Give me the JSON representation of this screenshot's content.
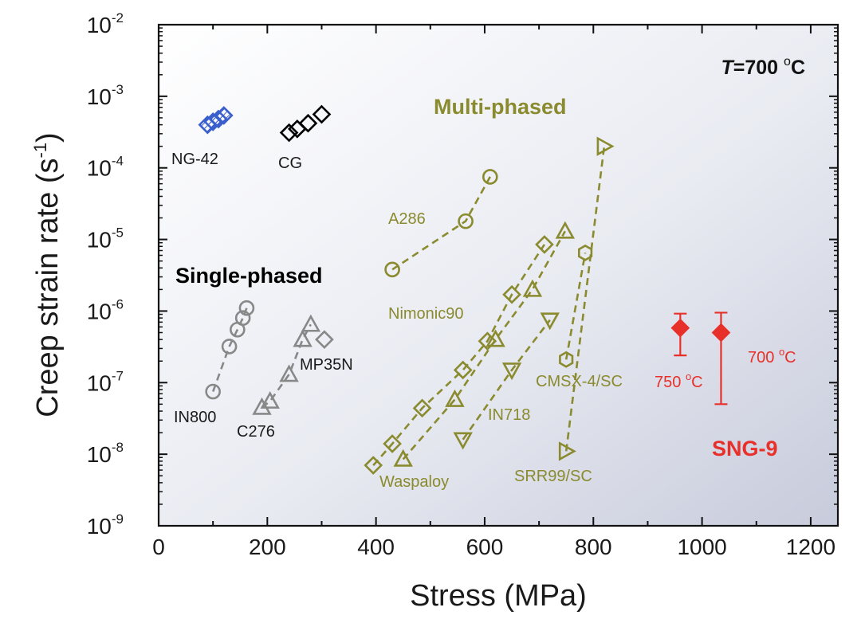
{
  "chart_data": {
    "type": "scatter",
    "xlabel": "Stress (MPa)",
    "ylabel": "Creep strain rate",
    "ylabel_unit_base": "s",
    "ylabel_unit_exp": "-1",
    "x_scale": "linear",
    "y_scale": "log",
    "xlim": [
      0,
      1250
    ],
    "ylim": [
      1e-09,
      0.01
    ],
    "x_ticks": [
      "0",
      "200",
      "400",
      "600",
      "800",
      "1000",
      "1200"
    ],
    "y_ticks": [
      {
        "base": "10",
        "exp": "-9",
        "value": 1e-09
      },
      {
        "base": "10",
        "exp": "-8",
        "value": 1e-08
      },
      {
        "base": "10",
        "exp": "-7",
        "value": 1e-07
      },
      {
        "base": "10",
        "exp": "-6",
        "value": 1e-06
      },
      {
        "base": "10",
        "exp": "-5",
        "value": 1e-05
      },
      {
        "base": "10",
        "exp": "-4",
        "value": 0.0001
      },
      {
        "base": "10",
        "exp": "-3",
        "value": 0.001
      },
      {
        "base": "10",
        "exp": "-2",
        "value": 0.01
      }
    ],
    "temperature_note": {
      "italic": "T",
      "text": "=700 ",
      "degree": "o",
      "unit": "C"
    },
    "group_labels": [
      {
        "text": "Multi-phased",
        "color": "#8a8a2e"
      },
      {
        "text": "Single-phased",
        "color": "#000000"
      },
      {
        "text": "SNG-9",
        "color": "#e8302a"
      }
    ],
    "series": [
      {
        "name": "NG-42",
        "group": "nanograined",
        "marker": "diamond",
        "color": "#3a5fcd",
        "hatched": true,
        "line": false,
        "points": [
          [
            90,
            0.0004
          ],
          [
            100,
            0.00044
          ],
          [
            110,
            0.00048
          ],
          [
            120,
            0.00054
          ]
        ]
      },
      {
        "name": "CG",
        "group": "coarse-grained",
        "marker": "diamond",
        "color": "#000000",
        "line": false,
        "points": [
          [
            240,
            0.00031
          ],
          [
            255,
            0.00035
          ],
          [
            275,
            0.00042
          ],
          [
            300,
            0.00056
          ]
        ]
      },
      {
        "name": "IN800",
        "group": "single-phased",
        "marker": "circle",
        "color": "#888888",
        "line": true,
        "points": [
          [
            100,
            7.5e-08
          ],
          [
            130,
            3.2e-07
          ],
          [
            145,
            5.5e-07
          ],
          [
            155,
            8e-07
          ],
          [
            162,
            1.1e-06
          ]
        ]
      },
      {
        "name": "C276",
        "group": "single-phased",
        "marker": "triangle-up",
        "color": "#888888",
        "line": true,
        "points": [
          [
            190,
            4.5e-08
          ],
          [
            205,
            5.5e-08
          ],
          [
            240,
            1.3e-07
          ],
          [
            265,
            4e-07
          ],
          [
            280,
            6.5e-07
          ]
        ]
      },
      {
        "name": "MP35N",
        "group": "single-phased",
        "marker": "diamond",
        "color": "#888888",
        "line": false,
        "points": [
          [
            305,
            4e-07
          ]
        ]
      },
      {
        "name": "A286",
        "group": "multi-phased",
        "marker": "circle",
        "color": "#8a8a2e",
        "line": true,
        "points": [
          [
            430,
            3.8e-06
          ],
          [
            565,
            1.8e-05
          ],
          [
            610,
            7.5e-05
          ]
        ]
      },
      {
        "name": "Nimonic90",
        "group": "multi-phased",
        "marker": "diamond",
        "color": "#8a8a2e",
        "line": true,
        "points": [
          [
            395,
            7e-09
          ],
          [
            430,
            1.4e-08
          ],
          [
            485,
            4.4e-08
          ],
          [
            560,
            1.5e-07
          ],
          [
            605,
            3.8e-07
          ],
          [
            650,
            1.7e-06
          ],
          [
            710,
            8.5e-06
          ]
        ]
      },
      {
        "name": "Waspaloy",
        "group": "multi-phased",
        "marker": "triangle-up",
        "color": "#8a8a2e",
        "line": true,
        "points": [
          [
            450,
            8.5e-09
          ],
          [
            545,
            5.8e-08
          ],
          [
            620,
            4e-07
          ],
          [
            688,
            2e-06
          ],
          [
            748,
            1.3e-05
          ]
        ]
      },
      {
        "name": "IN718",
        "group": "multi-phased",
        "marker": "triangle-down",
        "color": "#8a8a2e",
        "line": true,
        "points": [
          [
            560,
            1.6e-08
          ],
          [
            650,
            1.5e-07
          ],
          [
            720,
            7.5e-07
          ]
        ]
      },
      {
        "name": "CMSX-4/SC",
        "group": "multi-phased",
        "marker": "hexagon",
        "color": "#8a8a2e",
        "line": true,
        "points": [
          [
            750,
            2.1e-07
          ],
          [
            785,
            6.5e-06
          ]
        ]
      },
      {
        "name": "SRR99/SC",
        "group": "multi-phased",
        "marker": "triangle-right",
        "color": "#8a8a2e",
        "line": true,
        "points": [
          [
            750,
            1.1e-08
          ],
          [
            820,
            0.0002
          ]
        ]
      },
      {
        "name": "SNG-9",
        "group": "this-work",
        "marker": "diamond-filled",
        "color": "#e8302a",
        "line": false,
        "points": [
          {
            "x": 960,
            "y": 5.8e-07,
            "ymin": 2.4e-07,
            "ymax": 9.2e-07,
            "label": {
              "text": "750 ",
              "degree": "o",
              "unit": "C"
            }
          },
          {
            "x": 1035,
            "y": 5e-07,
            "ymin": 5e-08,
            "ymax": 9.5e-07,
            "label": {
              "text": "700 ",
              "degree": "o",
              "unit": "C"
            }
          }
        ]
      }
    ]
  }
}
